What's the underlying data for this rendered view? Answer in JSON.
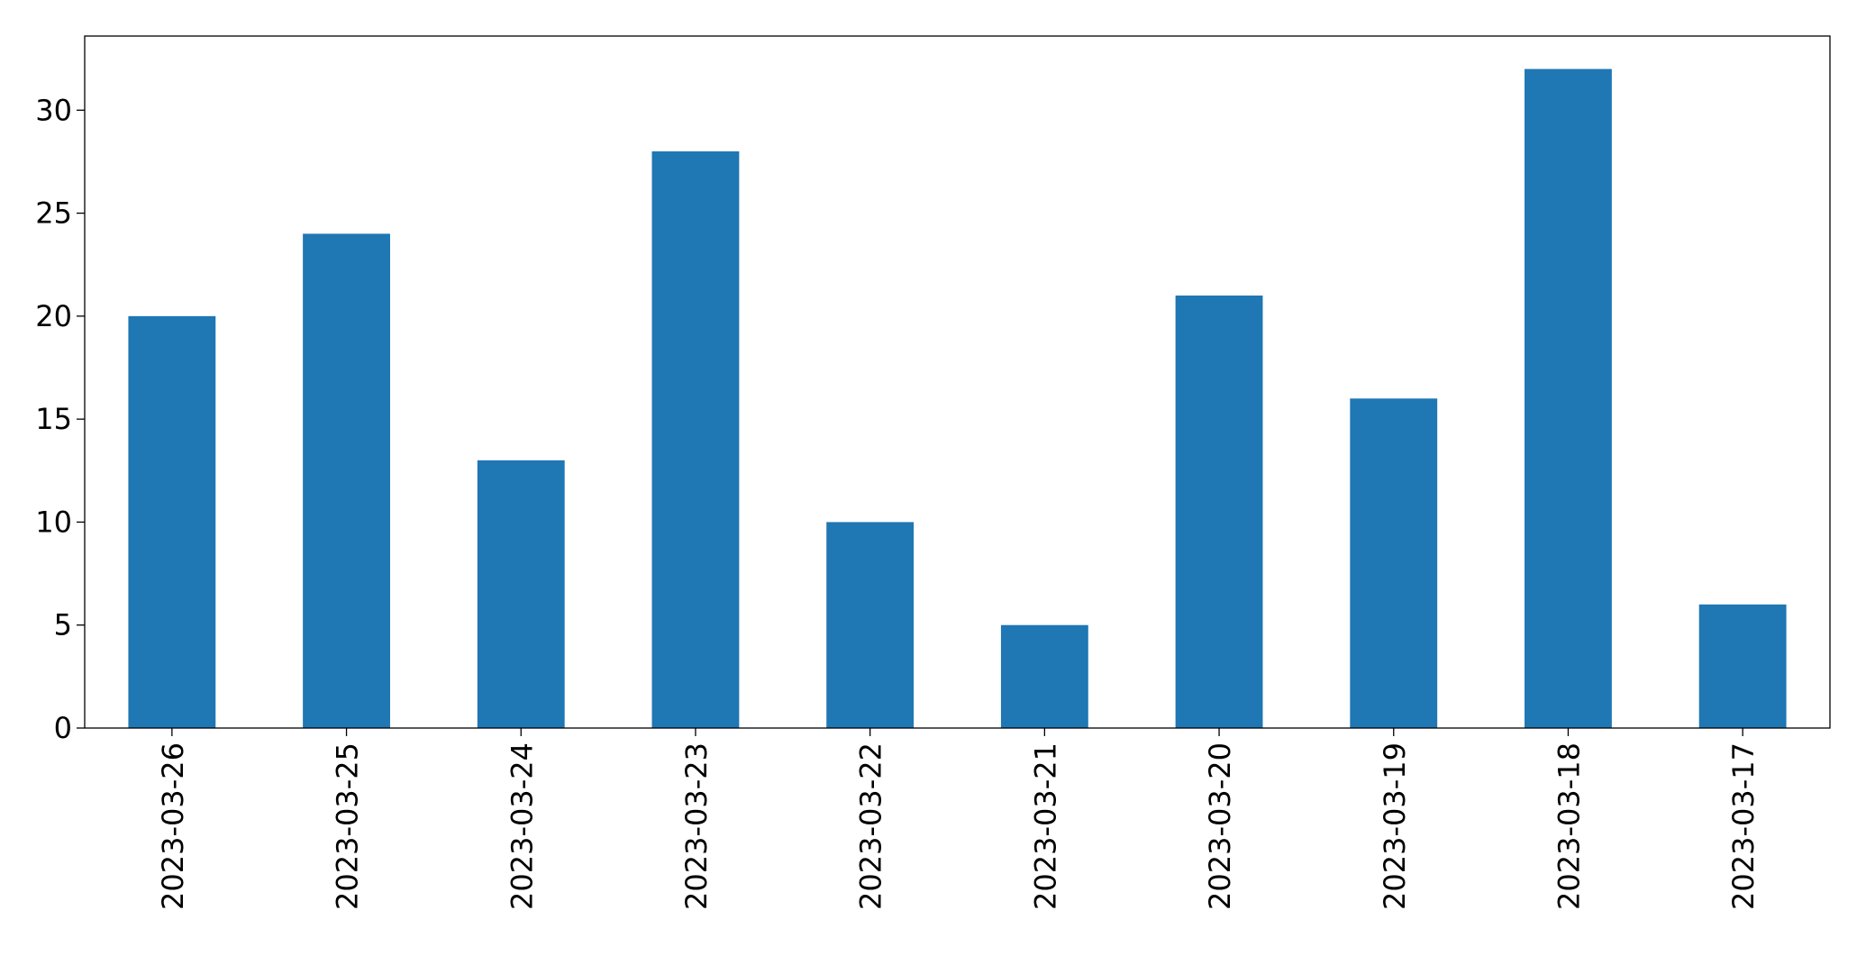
{
  "chart_data": {
    "type": "bar",
    "categories": [
      "2023-03-26",
      "2023-03-25",
      "2023-03-24",
      "2023-03-23",
      "2023-03-22",
      "2023-03-21",
      "2023-03-20",
      "2023-03-19",
      "2023-03-18",
      "2023-03-17"
    ],
    "values": [
      20,
      24,
      13,
      28,
      10,
      5,
      21,
      16,
      32,
      6
    ],
    "color": "#1f77b4",
    "ylim": [
      0,
      33.6
    ],
    "yticks": [
      0,
      5,
      10,
      15,
      20,
      25,
      30
    ],
    "grid": false
  }
}
